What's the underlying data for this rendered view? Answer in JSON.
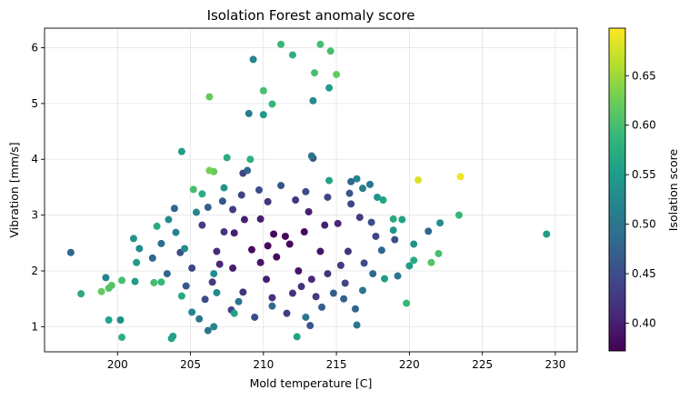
{
  "chart_data": {
    "type": "scatter",
    "title": "Isolation Forest anomaly score",
    "xlabel": "Mold temperature [C]",
    "ylabel": "Vibration [mm/s]",
    "colorbar_label": "Isolation score",
    "colormap": "viridis",
    "xlim": [
      195.0,
      231.5
    ],
    "ylim": [
      0.55,
      6.35
    ],
    "color_range": [
      0.372,
      0.698
    ],
    "xticks": [
      200,
      205,
      210,
      215,
      220,
      225,
      230
    ],
    "yticks": [
      1,
      2,
      3,
      4,
      5,
      6
    ],
    "cticks": [
      0.4,
      0.45,
      0.5,
      0.55,
      0.6,
      0.65
    ],
    "xtick_labels": [
      "200",
      "205",
      "210",
      "215",
      "220",
      "225",
      "230"
    ],
    "ytick_labels": [
      "1",
      "2",
      "3",
      "4",
      "5",
      "6"
    ],
    "ctick_labels": [
      "0.40",
      "0.45",
      "0.50",
      "0.55",
      "0.60",
      "0.65"
    ],
    "grid": true,
    "points": [
      [
        211.2,
        6.06,
        0.59
      ],
      [
        213.9,
        6.06,
        0.6
      ],
      [
        214.6,
        5.94,
        0.6
      ],
      [
        212.0,
        5.87,
        0.58
      ],
      [
        209.3,
        5.79,
        0.52
      ],
      [
        213.5,
        5.55,
        0.6
      ],
      [
        215.0,
        5.52,
        0.62
      ],
      [
        214.5,
        5.28,
        0.55
      ],
      [
        210.0,
        5.23,
        0.6
      ],
      [
        206.3,
        5.12,
        0.62
      ],
      [
        210.6,
        4.99,
        0.59
      ],
      [
        213.4,
        5.05,
        0.53
      ],
      [
        209.0,
        4.82,
        0.51
      ],
      [
        210.0,
        4.8,
        0.55
      ],
      [
        204.4,
        4.14,
        0.55
      ],
      [
        213.3,
        4.06,
        0.5
      ],
      [
        213.4,
        4.02,
        0.46
      ],
      [
        207.5,
        4.03,
        0.57
      ],
      [
        209.1,
        4.0,
        0.58
      ],
      [
        206.3,
        3.8,
        0.63
      ],
      [
        206.6,
        3.78,
        0.62
      ],
      [
        208.9,
        3.8,
        0.48
      ],
      [
        208.6,
        3.75,
        0.44
      ],
      [
        220.6,
        3.63,
        0.68
      ],
      [
        223.5,
        3.69,
        0.69
      ],
      [
        214.5,
        3.62,
        0.56
      ],
      [
        216.4,
        3.65,
        0.52
      ],
      [
        205.2,
        3.46,
        0.6
      ],
      [
        205.8,
        3.38,
        0.57
      ],
      [
        207.3,
        3.49,
        0.54
      ],
      [
        216.0,
        3.6,
        0.48
      ],
      [
        217.3,
        3.55,
        0.5
      ],
      [
        216.8,
        3.48,
        0.51
      ],
      [
        217.8,
        3.32,
        0.54
      ],
      [
        218.2,
        3.27,
        0.56
      ],
      [
        223.4,
        3.0,
        0.59
      ],
      [
        222.1,
        2.86,
        0.53
      ],
      [
        219.5,
        2.92,
        0.56
      ],
      [
        218.9,
        2.93,
        0.57
      ],
      [
        229.4,
        2.66,
        0.55
      ],
      [
        221.3,
        2.71,
        0.48
      ],
      [
        220.3,
        2.48,
        0.54
      ],
      [
        218.9,
        2.73,
        0.54
      ],
      [
        222.0,
        2.31,
        0.6
      ],
      [
        221.5,
        2.15,
        0.61
      ],
      [
        220.3,
        2.19,
        0.57
      ],
      [
        220.0,
        2.09,
        0.55
      ],
      [
        219.8,
        1.42,
        0.59
      ],
      [
        219.2,
        1.91,
        0.5
      ],
      [
        218.3,
        1.86,
        0.55
      ],
      [
        216.4,
        1.03,
        0.5
      ],
      [
        212.3,
        0.82,
        0.56
      ],
      [
        208.0,
        1.24,
        0.56
      ],
      [
        203.8,
        0.83,
        0.56
      ],
      [
        203.7,
        0.79,
        0.56
      ],
      [
        200.3,
        0.81,
        0.58
      ],
      [
        200.2,
        1.12,
        0.53
      ],
      [
        199.4,
        1.12,
        0.56
      ],
      [
        199.4,
        1.69,
        0.61
      ],
      [
        199.6,
        1.74,
        0.61
      ],
      [
        199.2,
        1.88,
        0.52
      ],
      [
        198.9,
        1.63,
        0.62
      ],
      [
        197.5,
        1.59,
        0.57
      ],
      [
        196.8,
        2.33,
        0.48
      ],
      [
        200.3,
        1.83,
        0.6
      ],
      [
        201.2,
        1.81,
        0.55
      ],
      [
        203.0,
        1.8,
        0.59
      ],
      [
        202.5,
        1.79,
        0.6
      ],
      [
        201.3,
        2.15,
        0.55
      ],
      [
        201.5,
        2.4,
        0.53
      ],
      [
        201.1,
        2.58,
        0.54
      ],
      [
        202.7,
        2.8,
        0.57
      ],
      [
        203.5,
        2.92,
        0.53
      ],
      [
        204.0,
        2.69,
        0.52
      ],
      [
        205.4,
        3.05,
        0.52
      ],
      [
        204.6,
        2.4,
        0.53
      ],
      [
        206.6,
        1.95,
        0.53
      ],
      [
        206.8,
        1.61,
        0.53
      ],
      [
        204.4,
        1.55,
        0.57
      ],
      [
        205.1,
        1.26,
        0.52
      ],
      [
        205.6,
        1.14,
        0.5
      ],
      [
        206.6,
        1.0,
        0.52
      ],
      [
        206.2,
        0.93,
        0.5
      ],
      [
        208.3,
        1.45,
        0.5
      ],
      [
        210.6,
        1.37,
        0.48
      ],
      [
        212.9,
        1.17,
        0.5
      ],
      [
        213.2,
        1.02,
        0.46
      ],
      [
        214.0,
        1.35,
        0.47
      ],
      [
        214.8,
        1.6,
        0.47
      ],
      [
        215.5,
        1.5,
        0.47
      ],
      [
        216.8,
        1.65,
        0.5
      ],
      [
        218.1,
        2.37,
        0.48
      ],
      [
        219.0,
        2.56,
        0.45
      ],
      [
        217.4,
        2.87,
        0.45
      ],
      [
        216.0,
        3.2,
        0.44
      ],
      [
        212.9,
        3.42,
        0.45
      ],
      [
        211.2,
        3.53,
        0.46
      ],
      [
        209.7,
        3.45,
        0.45
      ],
      [
        208.5,
        3.36,
        0.44
      ],
      [
        207.2,
        3.25,
        0.46
      ],
      [
        206.2,
        3.14,
        0.47
      ],
      [
        203.0,
        2.49,
        0.49
      ],
      [
        202.4,
        2.23,
        0.48
      ],
      [
        203.4,
        1.95,
        0.48
      ],
      [
        204.7,
        1.73,
        0.46
      ],
      [
        206.0,
        1.49,
        0.45
      ],
      [
        207.8,
        1.3,
        0.44
      ],
      [
        209.4,
        1.17,
        0.45
      ],
      [
        211.6,
        1.24,
        0.43
      ],
      [
        213.6,
        1.54,
        0.43
      ],
      [
        215.6,
        1.78,
        0.44
      ],
      [
        216.9,
        2.14,
        0.45
      ],
      [
        217.7,
        2.62,
        0.44
      ],
      [
        216.6,
        2.96,
        0.43
      ],
      [
        214.4,
        3.32,
        0.44
      ],
      [
        212.2,
        3.27,
        0.42
      ],
      [
        210.3,
        3.24,
        0.42
      ],
      [
        207.9,
        3.1,
        0.43
      ],
      [
        205.8,
        2.82,
        0.43
      ],
      [
        204.3,
        2.33,
        0.45
      ],
      [
        205.1,
        2.05,
        0.44
      ],
      [
        206.5,
        1.8,
        0.43
      ],
      [
        208.6,
        1.62,
        0.42
      ],
      [
        210.6,
        1.52,
        0.42
      ],
      [
        212.6,
        1.72,
        0.42
      ],
      [
        214.4,
        1.95,
        0.42
      ],
      [
        215.8,
        2.35,
        0.42
      ],
      [
        215.1,
        2.85,
        0.41
      ],
      [
        213.1,
        3.06,
        0.4
      ],
      [
        209.8,
        2.93,
        0.4
      ],
      [
        208.0,
        2.68,
        0.4
      ],
      [
        206.8,
        2.35,
        0.41
      ],
      [
        207.9,
        2.05,
        0.4
      ],
      [
        210.2,
        1.85,
        0.4
      ],
      [
        212.4,
        2.0,
        0.39
      ],
      [
        213.9,
        2.35,
        0.39
      ],
      [
        212.8,
        2.7,
        0.38
      ],
      [
        210.7,
        2.66,
        0.38
      ],
      [
        209.2,
        2.38,
        0.38
      ],
      [
        210.9,
        2.25,
        0.38
      ],
      [
        211.8,
        2.48,
        0.38
      ],
      [
        210.3,
        2.45,
        0.38
      ],
      [
        211.5,
        2.62,
        0.38
      ],
      [
        209.8,
        2.15,
        0.39
      ],
      [
        208.7,
        2.92,
        0.4
      ],
      [
        214.2,
        2.82,
        0.4
      ],
      [
        213.3,
        1.85,
        0.41
      ],
      [
        207.3,
        2.7,
        0.42
      ],
      [
        207.0,
        2.12,
        0.41
      ],
      [
        212.0,
        1.6,
        0.42
      ],
      [
        215.3,
        2.1,
        0.43
      ],
      [
        203.9,
        3.12,
        0.48
      ],
      [
        215.9,
        3.39,
        0.46
      ],
      [
        217.5,
        1.95,
        0.48
      ],
      [
        216.3,
        1.32,
        0.48
      ]
    ]
  }
}
